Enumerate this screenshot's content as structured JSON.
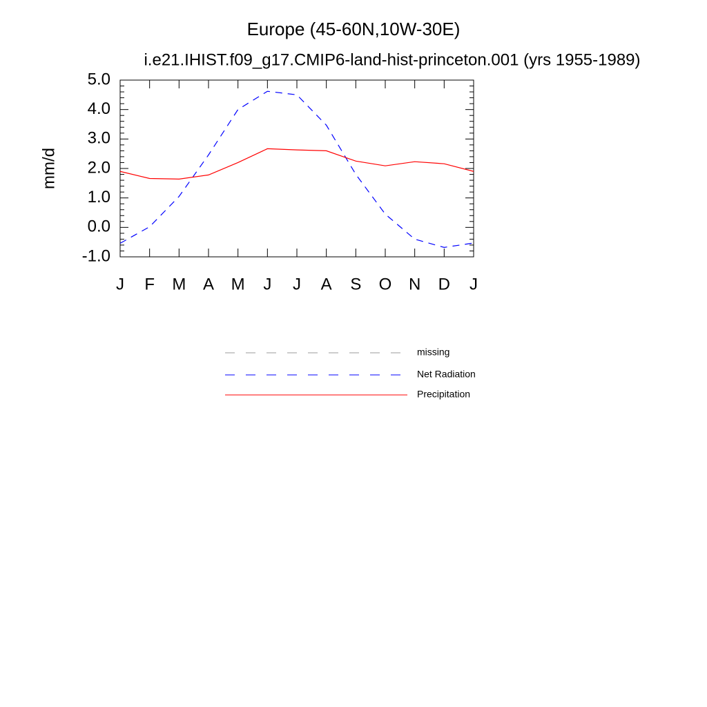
{
  "chart_data": {
    "type": "line",
    "title": "Europe (45-60N,10W-30E)",
    "subtitle": "i.e21.IHIST.f09_g17.CMIP6-land-hist-princeton.001 (yrs 1955-1989)",
    "y_label": "mm/d",
    "categories": [
      "J",
      "F",
      "M",
      "A",
      "M",
      "J",
      "J",
      "A",
      "S",
      "O",
      "N",
      "D",
      "J"
    ],
    "series": [
      {
        "name": "missing",
        "color": "#999999",
        "dash": true,
        "values": [
          null,
          null,
          null,
          null,
          null,
          null,
          null,
          null,
          null,
          null,
          null,
          null,
          null
        ]
      },
      {
        "name": "Net Radiation",
        "color": "#0000ff",
        "dash": true,
        "values": [
          -0.54,
          0.02,
          1.05,
          2.46,
          4.0,
          4.62,
          4.5,
          3.47,
          1.8,
          0.45,
          -0.4,
          -0.68,
          -0.53
        ]
      },
      {
        "name": "Precipitation",
        "color": "#ff0000",
        "dash": false,
        "values": [
          1.9,
          1.66,
          1.64,
          1.78,
          2.2,
          2.67,
          2.63,
          2.6,
          2.25,
          2.09,
          2.23,
          2.16,
          1.9
        ]
      }
    ],
    "ylim": [
      -1,
      5
    ],
    "yticks": [
      {
        "value": -1,
        "label": "-1.0"
      },
      {
        "value": 0,
        "label": "0.0"
      },
      {
        "value": 1,
        "label": "1.0"
      },
      {
        "value": 2,
        "label": "2.0"
      },
      {
        "value": 3,
        "label": "3.0"
      },
      {
        "value": 4,
        "label": "4.0"
      },
      {
        "value": 5,
        "label": "5.0"
      }
    ]
  }
}
